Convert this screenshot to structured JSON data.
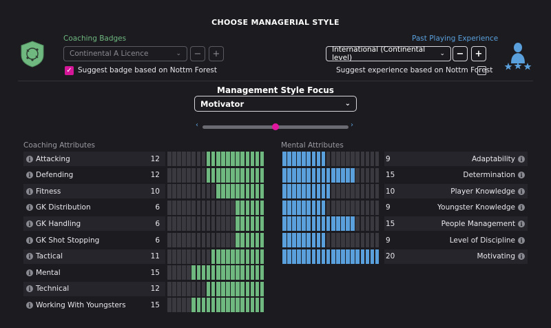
{
  "title": "CHOOSE MANAGERIAL STYLE",
  "colors": {
    "coaching": "#6fb880",
    "mental": "#5aa0dc",
    "accent": "#d6179a"
  },
  "coaching_badges": {
    "label": "Coaching Badges",
    "selected": "Continental A Licence",
    "minus": "−",
    "plus": "+",
    "suggest_label": "Suggest badge based on Nottm Forest",
    "suggest_checked": true,
    "icon": "tactics-board-badge-icon"
  },
  "playing_experience": {
    "label": "Past Playing Experience",
    "selected": "International (Continental level)",
    "minus": "−",
    "plus": "+",
    "suggest_label": "Suggest experience based on Nottm Forest",
    "suggest_checked": false,
    "icon": "player-with-stars-icon"
  },
  "focus": {
    "label": "Management Style Focus",
    "selected": "Motivator",
    "slider_value": 0.5
  },
  "coaching_attributes": {
    "header": "Coaching Attributes",
    "max": 20,
    "items": [
      {
        "name": "Attacking",
        "value": 12
      },
      {
        "name": "Defending",
        "value": 12
      },
      {
        "name": "Fitness",
        "value": 10
      },
      {
        "name": "GK Distribution",
        "value": 6
      },
      {
        "name": "GK Handling",
        "value": 6
      },
      {
        "name": "GK Shot Stopping",
        "value": 6
      },
      {
        "name": "Tactical",
        "value": 11
      },
      {
        "name": "Mental",
        "value": 15
      },
      {
        "name": "Technical",
        "value": 12
      },
      {
        "name": "Working With Youngsters",
        "value": 15
      }
    ]
  },
  "mental_attributes": {
    "header": "Mental Attributes",
    "max": 20,
    "items": [
      {
        "name": "Adaptability",
        "value": 9
      },
      {
        "name": "Determination",
        "value": 15
      },
      {
        "name": "Player Knowledge",
        "value": 10
      },
      {
        "name": "Youngster Knowledge",
        "value": 9
      },
      {
        "name": "People Management",
        "value": 15
      },
      {
        "name": "Level of Discipline",
        "value": 9
      },
      {
        "name": "Motivating",
        "value": 20
      }
    ]
  }
}
